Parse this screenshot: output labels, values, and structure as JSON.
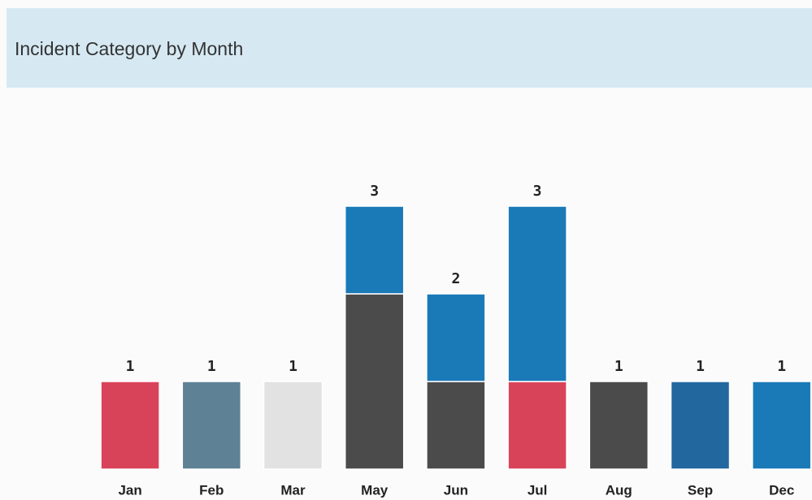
{
  "chart_data": {
    "type": "stacked_bar",
    "title": "Incident Category by Month",
    "categories": [
      "Jan",
      "Feb",
      "Mar",
      "May",
      "Jun",
      "Jul",
      "Aug",
      "Sep",
      "Dec"
    ],
    "series": [
      {
        "color": "#d9435a",
        "values": [
          1,
          null,
          null,
          null,
          null,
          1,
          null,
          null,
          null
        ]
      },
      {
        "color": "#5e8195",
        "values": [
          null,
          1,
          null,
          null,
          null,
          null,
          null,
          null,
          null
        ]
      },
      {
        "color": "#e2e2e2",
        "values": [
          null,
          null,
          1,
          null,
          null,
          null,
          null,
          null,
          null
        ]
      },
      {
        "color": "#4b4b4b",
        "values": [
          null,
          null,
          null,
          2,
          1,
          null,
          1,
          null,
          null
        ]
      },
      {
        "color": "#23679f",
        "values": [
          null,
          null,
          null,
          null,
          null,
          null,
          null,
          1,
          null
        ]
      },
      {
        "color": "#1a79b7",
        "values": [
          null,
          null,
          null,
          1,
          1,
          2,
          null,
          null,
          1
        ]
      }
    ],
    "totals": [
      1,
      1,
      1,
      3,
      2,
      3,
      1,
      1,
      1
    ],
    "ylim": [
      0,
      4
    ]
  }
}
